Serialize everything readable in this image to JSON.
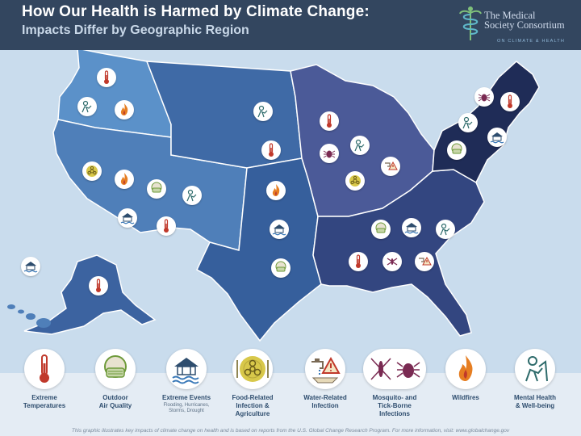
{
  "header": {
    "title": "How Our Health is Harmed by Climate Change:",
    "subtitle": "Impacts Differ by Geographic Region",
    "logo": {
      "line1": "The Medical",
      "line2": "Society Consortium",
      "line3": "ON CLIMATE & HEALTH"
    }
  },
  "legend": [
    {
      "label": "Extreme\nTemperatures",
      "sub": "",
      "icon": "thermometer-icon"
    },
    {
      "label": "Outdoor\nAir Quality",
      "sub": "",
      "icon": "face-mask-icon"
    },
    {
      "label": "Extreme Events",
      "sub": "Flooding, Hurricanes,\nStorms, Drought",
      "icon": "flood-house-icon"
    },
    {
      "label": "Food-Related\nInfection &\nAgriculture",
      "sub": "",
      "icon": "biohazard-plate-icon"
    },
    {
      "label": "Water-Related\nInfection",
      "sub": "",
      "icon": "faucet-warning-icon"
    },
    {
      "label": "Mosquito- and\nTick-Borne\nInfections",
      "sub": "",
      "icon": "mosquito-tick-icon"
    },
    {
      "label": "Wildfires",
      "sub": "",
      "icon": "fire-icon"
    },
    {
      "label": "Mental Health\n& Well-being",
      "sub": "",
      "icon": "distressed-person-icon"
    }
  ],
  "footer": "This graphic illustrates key impacts of climate change on health and is based on reports from the U.S. Global Change Research Program. For more information, visit: www.globalchange.gov",
  "colors": {
    "header_bg": "#33465f",
    "map_bg": "#c9dced",
    "accent_red": "#c0392b",
    "accent_orange": "#e67e22",
    "accent_green": "#6e9a3a",
    "icon_navy": "#2e4d6e"
  }
}
